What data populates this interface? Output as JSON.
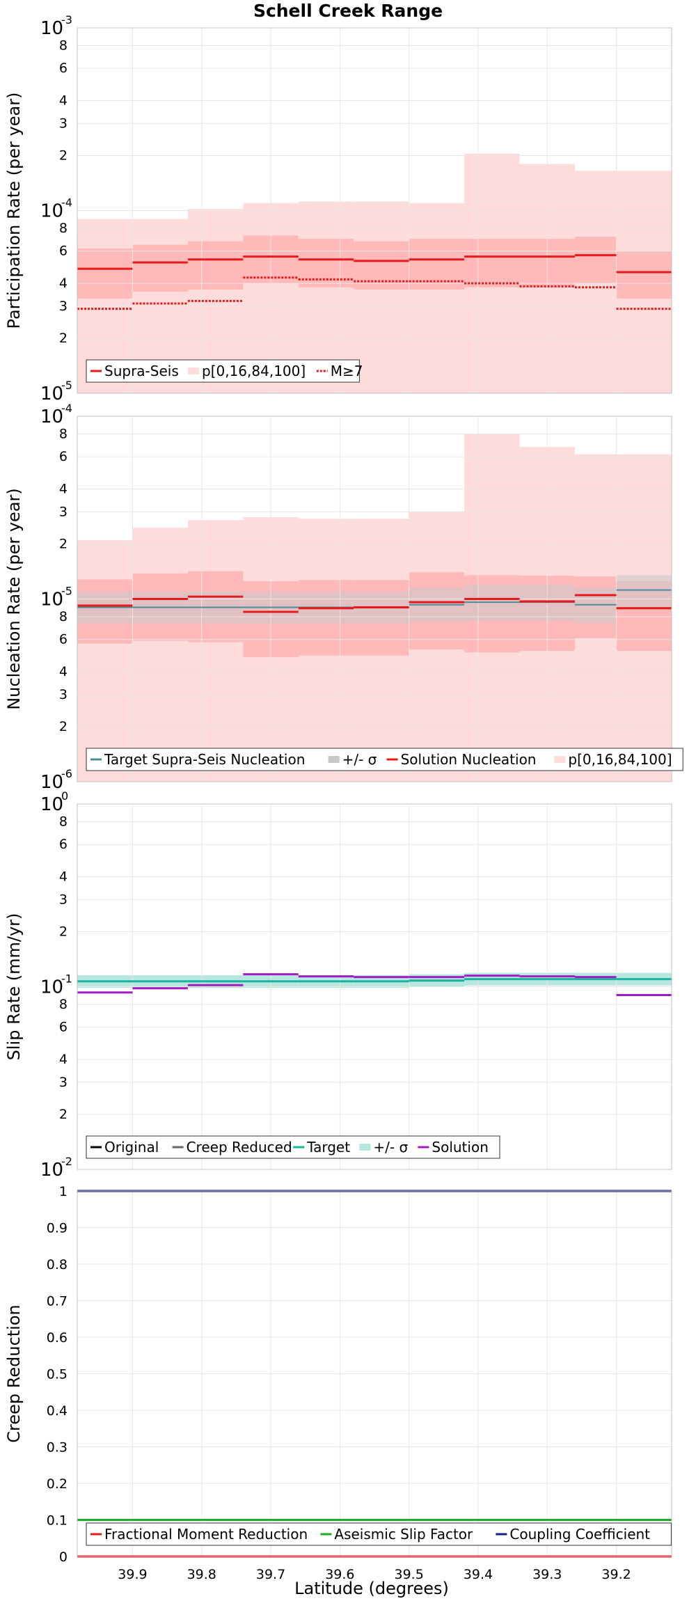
{
  "title": "Schell Creek Range",
  "xlabel": "Latitude (degrees)",
  "x_ticks": [
    "39.9",
    "39.8",
    "39.7",
    "39.6",
    "39.5",
    "39.4",
    "39.3",
    "39.2"
  ],
  "colors": {
    "red": "#e8191b",
    "band_light": "#ffdcdc",
    "band_dark": "#ffb9b9",
    "grey_band": "#c8c8c8",
    "steel": "#4d8c99",
    "teal": "#19b4a0",
    "teal_band": "#b8e6e0",
    "purple": "#a21cc4",
    "green": "#1fad1f",
    "navy": "#1c1c8e",
    "black": "#000000",
    "grey_line": "#666666",
    "grid": "#e8e8e8",
    "frame": "#c0c0c0"
  },
  "chart_data": [
    {
      "type": "line",
      "step": true,
      "log_y": true,
      "grid": true,
      "legend_position": "bottom-left",
      "ylabel": "Participation Rate (per year)",
      "xlim": [
        39.98,
        39.12
      ],
      "ylim": [
        1e-05,
        0.001
      ],
      "y_major_ticks": [
        {
          "base": "10",
          "exp": "-5",
          "v": 1e-05
        },
        {
          "base": "10",
          "exp": "-4",
          "v": 0.0001
        },
        {
          "base": "10",
          "exp": "-3",
          "v": 0.001
        }
      ],
      "y_minor_ticks": [
        {
          "label": "2",
          "v": 2e-05
        },
        {
          "label": "3",
          "v": 3e-05
        },
        {
          "label": "4",
          "v": 4e-05
        },
        {
          "label": "6",
          "v": 6e-05
        },
        {
          "label": "8",
          "v": 8e-05
        },
        {
          "label": "2",
          "v": 0.0002
        },
        {
          "label": "3",
          "v": 0.0003
        },
        {
          "label": "4",
          "v": 0.0004
        },
        {
          "label": "6",
          "v": 0.0006
        },
        {
          "label": "8",
          "v": 0.0008
        }
      ],
      "x_edges": [
        39.98,
        39.9,
        39.82,
        39.74,
        39.66,
        39.58,
        39.5,
        39.42,
        39.34,
        39.26,
        39.2,
        39.12
      ],
      "bands": [
        {
          "color_key": "band_light",
          "low": [
            1e-05,
            1e-05,
            1e-05,
            1e-05,
            1e-05,
            1e-05,
            1e-05,
            1e-05,
            1e-05,
            1e-05,
            1e-05
          ],
          "high": [
            9e-05,
            9e-05,
            0.000102,
            0.00011,
            0.000112,
            0.000112,
            0.00011,
            0.000205,
            0.00018,
            0.000165,
            0.000165
          ]
        },
        {
          "color_key": "band_dark",
          "low": [
            3.3e-05,
            3.6e-05,
            3.7e-05,
            4e-05,
            3.8e-05,
            3.7e-05,
            3.7e-05,
            3.8e-05,
            3.8e-05,
            4e-05,
            3.3e-05
          ],
          "high": [
            6.2e-05,
            6.5e-05,
            6.8e-05,
            7.3e-05,
            7e-05,
            6.8e-05,
            7e-05,
            7e-05,
            7e-05,
            7.2e-05,
            6e-05
          ]
        }
      ],
      "series": [
        {
          "name": "Supra-Seis",
          "color_key": "red",
          "dash": "",
          "width": 3,
          "values": [
            4.8e-05,
            5.2e-05,
            5.4e-05,
            5.6e-05,
            5.4e-05,
            5.3e-05,
            5.4e-05,
            5.6e-05,
            5.6e-05,
            5.7e-05,
            4.6e-05
          ]
        },
        {
          "name": "M≥7",
          "color_key": "red",
          "dash": "3,2",
          "width": 3,
          "values": [
            2.9e-05,
            3.1e-05,
            3.2e-05,
            4.3e-05,
            4.2e-05,
            4.1e-05,
            4.1e-05,
            4e-05,
            3.85e-05,
            3.8e-05,
            2.9e-05
          ]
        }
      ],
      "series_segments": [
        null,
        [
          0,
          1,
          2,
          3,
          4,
          5,
          6,
          7,
          8,
          9,
          10
        ]
      ],
      "legend": [
        {
          "label": "Supra-Seis",
          "kind": "line",
          "color_key": "red",
          "dash": ""
        },
        {
          "label": "p[0,16,84,100]",
          "kind": "swatch",
          "color_key": "band_light"
        },
        {
          "label": "M≥7",
          "kind": "line",
          "color_key": "red",
          "dash": "3,2"
        }
      ]
    },
    {
      "type": "line",
      "step": true,
      "log_y": true,
      "grid": true,
      "legend_position": "bottom-left",
      "ylabel": "Nucleation Rate (per year)",
      "xlim": [
        39.98,
        39.12
      ],
      "ylim": [
        1e-06,
        0.0001
      ],
      "y_major_ticks": [
        {
          "base": "10",
          "exp": "-6",
          "v": 1e-06
        },
        {
          "base": "10",
          "exp": "-5",
          "v": 1e-05
        },
        {
          "base": "10",
          "exp": "-4",
          "v": 0.0001
        }
      ],
      "y_minor_ticks": [
        {
          "label": "2",
          "v": 2e-06
        },
        {
          "label": "3",
          "v": 3e-06
        },
        {
          "label": "4",
          "v": 4e-06
        },
        {
          "label": "6",
          "v": 6e-06
        },
        {
          "label": "8",
          "v": 8e-06
        },
        {
          "label": "2",
          "v": 2e-05
        },
        {
          "label": "3",
          "v": 3e-05
        },
        {
          "label": "4",
          "v": 4e-05
        },
        {
          "label": "6",
          "v": 6e-05
        },
        {
          "label": "8",
          "v": 8e-05
        }
      ],
      "x_edges": [
        39.98,
        39.9,
        39.82,
        39.74,
        39.66,
        39.58,
        39.5,
        39.42,
        39.34,
        39.26,
        39.2,
        39.12
      ],
      "bands": [
        {
          "color_key": "band_light",
          "low": [
            1e-06,
            1e-06,
            1e-06,
            1e-06,
            1e-06,
            1e-06,
            1e-06,
            1e-06,
            1e-06,
            1e-06,
            1e-06
          ],
          "high": [
            2.1e-05,
            2.45e-05,
            2.7e-05,
            2.8e-05,
            2.75e-05,
            2.75e-05,
            3e-05,
            8e-05,
            6.8e-05,
            6.2e-05,
            6.2e-05
          ]
        },
        {
          "color_key": "band_dark",
          "low": [
            5.7e-06,
            5.9e-06,
            5.8e-06,
            4.8e-06,
            4.9e-06,
            4.9e-06,
            5.3e-06,
            5.1e-06,
            5.2e-06,
            6.1e-06,
            5.2e-06
          ],
          "high": [
            1.28e-05,
            1.38e-05,
            1.42e-05,
            1.25e-05,
            1.27e-05,
            1.27e-05,
            1.4e-05,
            1.35e-05,
            1.34e-05,
            1.33e-05,
            1.25e-05
          ]
        },
        {
          "color_key": "grey_band",
          "low": [
            7.3e-06,
            7.3e-06,
            7.3e-06,
            7.3e-06,
            7.3e-06,
            7.3e-06,
            7.5e-06,
            7.6e-06,
            7.6e-06,
            7.4e-06,
            9e-06
          ],
          "high": [
            1.1e-05,
            1.1e-05,
            1.1e-05,
            1.1e-05,
            1.1e-05,
            1.1e-05,
            1.15e-05,
            1.2e-05,
            1.2e-05,
            1.15e-05,
            1.35e-05
          ],
          "opacity": 0.55
        }
      ],
      "series": [
        {
          "name": "Target Supra-Seis Nucleation",
          "color_key": "steel",
          "dash": "",
          "width": 2,
          "values": [
            9e-06,
            9e-06,
            9e-06,
            9e-06,
            9e-06,
            9e-06,
            9.3e-06,
            9.6e-06,
            9.6e-06,
            9.3e-06,
            1.12e-05
          ]
        },
        {
          "name": "Solution Nucleation",
          "color_key": "red",
          "dash": "",
          "width": 3,
          "values": [
            9.2e-06,
            1e-05,
            1.03e-05,
            8.5e-06,
            8.9e-06,
            9e-06,
            9.6e-06,
            1e-05,
            9.7e-06,
            1.05e-05,
            8.9e-06
          ]
        }
      ],
      "series_segments": [
        null,
        null
      ],
      "legend": [
        {
          "label": "Target Supra-Seis Nucleation",
          "kind": "line",
          "color_key": "steel",
          "dash": ""
        },
        {
          "label": "+/- σ",
          "kind": "swatch",
          "color_key": "grey_band"
        },
        {
          "label": "Solution Nucleation",
          "kind": "line",
          "color_key": "red",
          "dash": ""
        },
        {
          "label": "p[0,16,84,100]",
          "kind": "swatch",
          "color_key": "band_light"
        }
      ]
    },
    {
      "type": "line",
      "step": true,
      "log_y": true,
      "grid": true,
      "legend_position": "bottom-left",
      "ylabel": "Slip Rate (mm/yr)",
      "xlim": [
        39.98,
        39.12
      ],
      "ylim": [
        0.01,
        1
      ],
      "y_major_ticks": [
        {
          "base": "10",
          "exp": "-2",
          "v": 0.01
        },
        {
          "base": "10",
          "exp": "-1",
          "v": 0.1
        },
        {
          "base": "10",
          "exp": "0",
          "v": 1
        }
      ],
      "y_minor_ticks": [
        {
          "label": "2",
          "v": 0.02
        },
        {
          "label": "3",
          "v": 0.03
        },
        {
          "label": "4",
          "v": 0.04
        },
        {
          "label": "6",
          "v": 0.06
        },
        {
          "label": "8",
          "v": 0.08
        },
        {
          "label": "2",
          "v": 0.2
        },
        {
          "label": "3",
          "v": 0.3
        },
        {
          "label": "4",
          "v": 0.4
        },
        {
          "label": "6",
          "v": 0.6
        },
        {
          "label": "8",
          "v": 0.8
        }
      ],
      "x_edges": [
        39.98,
        39.9,
        39.82,
        39.74,
        39.66,
        39.58,
        39.5,
        39.42,
        39.34,
        39.26,
        39.2,
        39.12
      ],
      "bands": [
        {
          "color_key": "teal_band",
          "low": [
            0.0985,
            0.0985,
            0.0985,
            0.0985,
            0.0985,
            0.0985,
            0.0995,
            0.1015,
            0.1015,
            0.1015,
            0.1015
          ],
          "high": [
            0.1155,
            0.1155,
            0.1155,
            0.1155,
            0.1155,
            0.1155,
            0.117,
            0.119,
            0.119,
            0.119,
            0.119
          ]
        }
      ],
      "series": [
        {
          "name": "Target",
          "color_key": "teal",
          "dash": "",
          "width": 3,
          "values": [
            0.107,
            0.107,
            0.107,
            0.107,
            0.107,
            0.107,
            0.108,
            0.11,
            0.11,
            0.11,
            0.11
          ]
        },
        {
          "name": "Solution",
          "color_key": "purple",
          "dash": "",
          "width": 3,
          "values": [
            0.093,
            0.098,
            0.102,
            0.117,
            0.114,
            0.113,
            0.113,
            0.115,
            0.114,
            0.113,
            0.09
          ]
        }
      ],
      "series_segments": [
        null,
        null
      ],
      "legend": [
        {
          "label": "Original",
          "kind": "line",
          "color_key": "black",
          "dash": ""
        },
        {
          "label": "Creep Reduced",
          "kind": "line",
          "color_key": "grey_line",
          "dash": ""
        },
        {
          "label": "Target",
          "kind": "line",
          "color_key": "teal",
          "dash": ""
        },
        {
          "label": "+/- σ",
          "kind": "swatch",
          "color_key": "teal_band"
        },
        {
          "label": "Solution",
          "kind": "line",
          "color_key": "purple",
          "dash": ""
        }
      ]
    },
    {
      "type": "line",
      "step": false,
      "log_y": false,
      "grid": true,
      "legend_position": "bottom-left",
      "ylabel": "Creep Reduction",
      "xlim": [
        39.98,
        39.12
      ],
      "ylim": [
        0,
        1
      ],
      "y_ticks": [
        "0",
        "0.1",
        "0.2",
        "0.3",
        "0.4",
        "0.5",
        "0.6",
        "0.7",
        "0.8",
        "0.9",
        "1"
      ],
      "series": [
        {
          "name": "Fractional Moment Reduction",
          "color_key": "red",
          "value": 0
        },
        {
          "name": "Aseismic Slip Factor",
          "color_key": "green",
          "value": 0.1
        },
        {
          "name": "Coupling Coefficient",
          "color_key": "navy",
          "value": 1
        }
      ],
      "legend": [
        {
          "label": "Fractional Moment Reduction",
          "kind": "line",
          "color_key": "red",
          "dash": ""
        },
        {
          "label": "Aseismic Slip Factor",
          "kind": "line",
          "color_key": "green",
          "dash": ""
        },
        {
          "label": "Coupling Coefficient",
          "kind": "line",
          "color_key": "navy",
          "dash": ""
        }
      ]
    }
  ]
}
